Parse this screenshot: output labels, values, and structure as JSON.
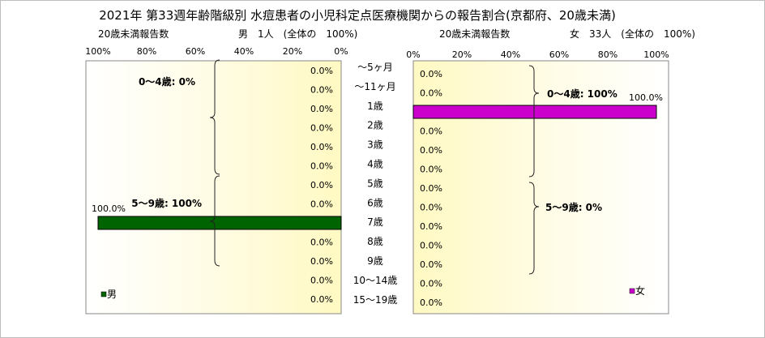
{
  "chart_data": [
    {
      "type": "bar",
      "orientation": "horizontal",
      "direction": "right-to-left",
      "title": "2021年 第33週年齢階級別 水痘患者の小児科定点医療機関からの報告割合(京都府、20歳未満)",
      "subtitle_left": "20歳未満報告数",
      "subtitle_right": "男　1人　(全体の　100%)",
      "categories": [
        "～5ヶ月",
        "～11ヶ月",
        "1歳",
        "2歳",
        "3歳",
        "4歳",
        "5歳",
        "6歳",
        "7歳",
        "8歳",
        "9歳",
        "10～14歳",
        "15～19歳"
      ],
      "series": [
        {
          "name": "男",
          "color": "#006400",
          "values": [
            0,
            0,
            0,
            0,
            0,
            0,
            0,
            0,
            100,
            0,
            0,
            0,
            0
          ]
        }
      ],
      "data_labels": [
        "0.0%",
        "0.0%",
        "0.0%",
        "0.0%",
        "0.0%",
        "0.0%",
        "0.0%",
        "0.0%",
        "100.0%",
        "0.0%",
        "0.0%",
        "0.0%",
        "0.0%"
      ],
      "xlim": [
        0,
        100
      ],
      "x_ticks": [
        "100%",
        "80%",
        "60%",
        "40%",
        "20%",
        "0%"
      ],
      "group_labels": [
        "0～4歳: 0%",
        "5～9歳: 100%"
      ],
      "legend": "bottom-left",
      "plot_background": "#fffbd0"
    },
    {
      "type": "bar",
      "orientation": "horizontal",
      "direction": "left-to-right",
      "subtitle_left": "20歳未満報告数",
      "subtitle_right": "女　33人　(全体の　100%)",
      "categories": [
        "～5ヶ月",
        "～11ヶ月",
        "1歳",
        "2歳",
        "3歳",
        "4歳",
        "5歳",
        "6歳",
        "7歳",
        "8歳",
        "9歳",
        "10～14歳",
        "15～19歳"
      ],
      "series": [
        {
          "name": "女",
          "color": "#cc00cc",
          "values": [
            0,
            0,
            100,
            0,
            0,
            0,
            0,
            0,
            0,
            0,
            0,
            0,
            0
          ]
        }
      ],
      "data_labels": [
        "0.0%",
        "0.0%",
        "100.0%",
        "0.0%",
        "0.0%",
        "0.0%",
        "0.0%",
        "0.0%",
        "0.0%",
        "0.0%",
        "0.0%",
        "0.0%",
        "0.0%"
      ],
      "xlim": [
        0,
        100
      ],
      "x_ticks": [
        "0%",
        "20%",
        "40%",
        "60%",
        "80%",
        "100%"
      ],
      "group_labels": [
        "0～4歳: 100%",
        "5～9歳: 0%"
      ],
      "legend": "bottom-right",
      "plot_background": "#fffbd0"
    }
  ]
}
